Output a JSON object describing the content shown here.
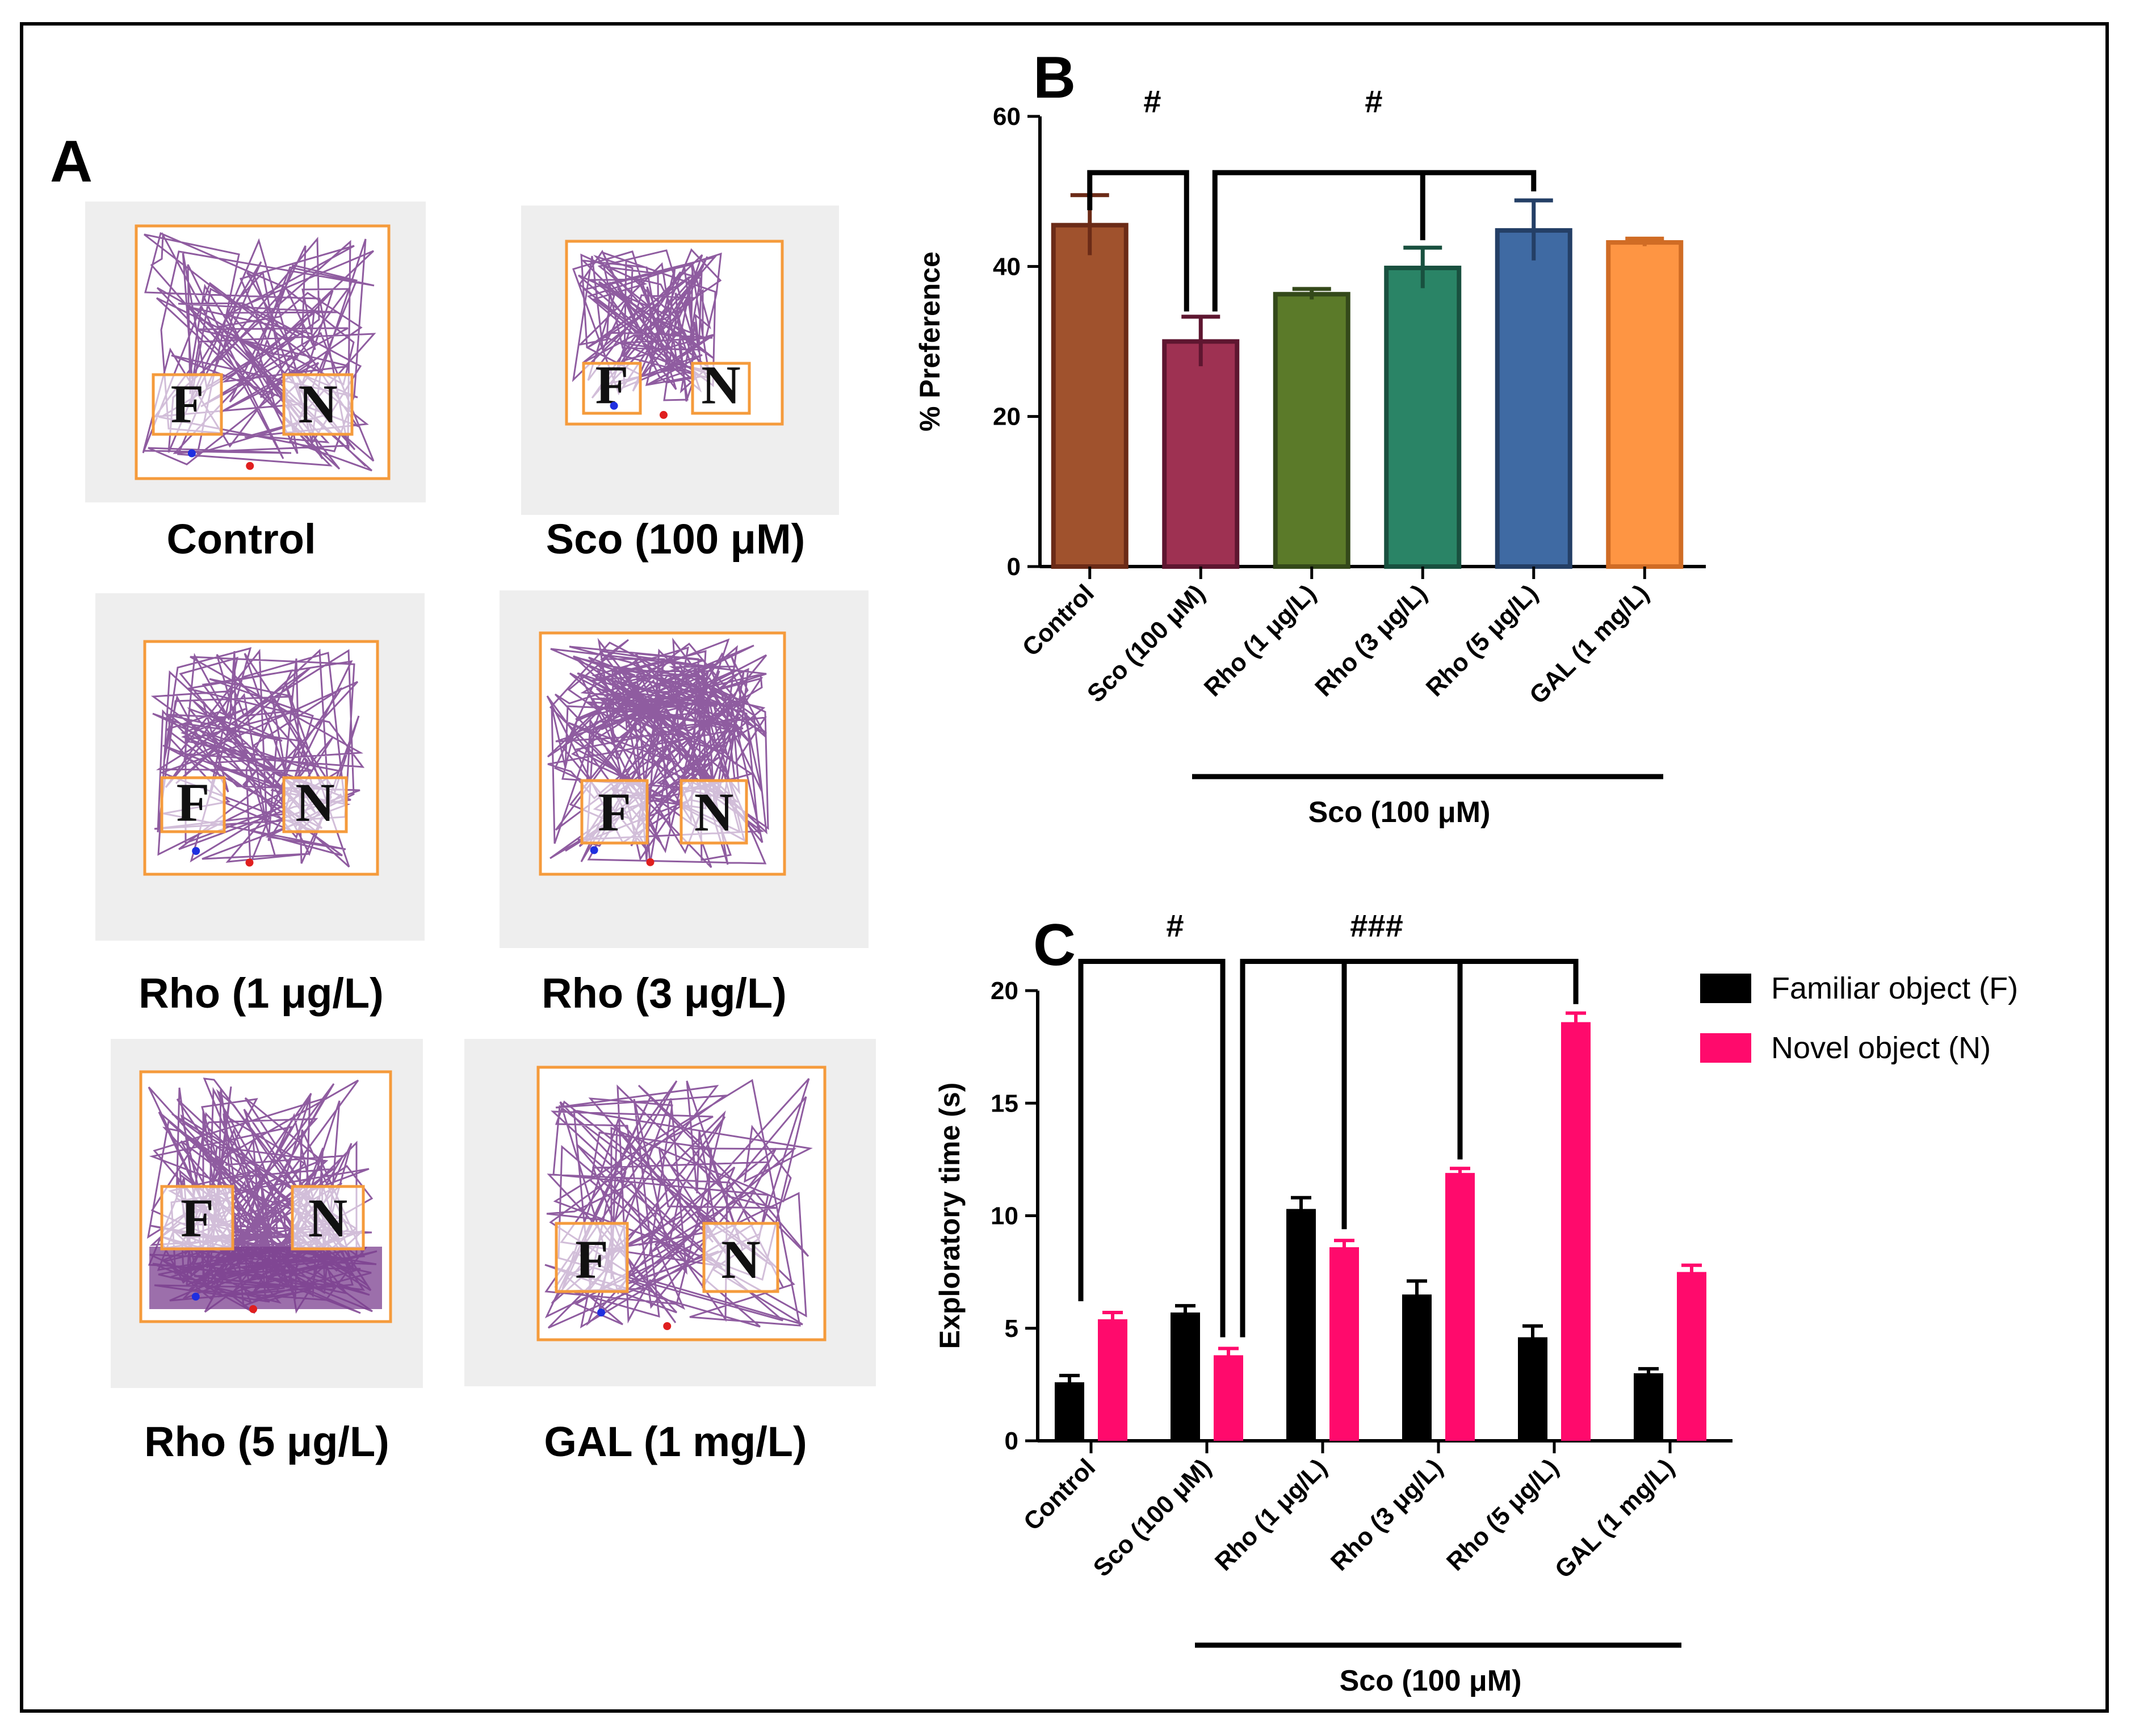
{
  "panels": {
    "a": {
      "letter": "A",
      "thumbs": [
        {
          "label": "Control",
          "F": "F",
          "N": "N"
        },
        {
          "label": "Sco (100 μM)",
          "F": "F",
          "N": "N"
        },
        {
          "label": "Rho (1 μg/L)",
          "F": "F",
          "N": "N"
        },
        {
          "label": "Rho (3 μg/L)",
          "F": "F",
          "N": "N"
        },
        {
          "label": "Rho (5 μg/L)",
          "F": "F",
          "N": "N"
        },
        {
          "label": "GAL (1 mg/L)",
          "F": "F",
          "N": "N"
        }
      ]
    },
    "b": {
      "letter": "B",
      "group_label": "Sco (100 μM)",
      "sig1": "#",
      "sig2": "#"
    },
    "c": {
      "letter": "C",
      "group_label": "Sco (100 μM)",
      "sig1": "#",
      "sig2": "###"
    }
  },
  "colors": {
    "track": "#7b3f8f",
    "arena": "#f59b3c",
    "thumb_bg": "#eeeeee",
    "familiar": "#000000",
    "novel": "#ff0a6c"
  },
  "chart_data": [
    {
      "type": "bar",
      "panel": "B",
      "ylabel": "% Preference",
      "ylim": [
        0,
        60
      ],
      "yticks": [
        0,
        20,
        40,
        60
      ],
      "categories": [
        "Control",
        "Sco (100 μM)",
        "Rho (1 μg/L)",
        "Rho (3 μg/L)",
        "Rho (5 μg/L)",
        "GAL (1 mg/L)"
      ],
      "values": [
        45.5,
        30,
        36.3,
        39.8,
        44.8,
        43.2
      ],
      "errors": [
        4,
        3.3,
        0.7,
        2.7,
        4,
        0.5
      ],
      "fill_colors": [
        "#a0522d",
        "#9e3152",
        "#5b7a29",
        "#2a8466",
        "#3f6aa3",
        "#fe9543"
      ],
      "edge_colors": [
        "#6b2b17",
        "#5e1630",
        "#34491a",
        "#19503f",
        "#243f66",
        "#d06c25"
      ]
    },
    {
      "type": "bar",
      "panel": "C",
      "ylabel": "Exploratory time (s)",
      "ylim": [
        0,
        20
      ],
      "yticks": [
        0,
        5,
        10,
        15,
        20
      ],
      "categories": [
        "Control",
        "Sco (100 μM)",
        "Rho (1 μg/L)",
        "Rho (3 μg/L)",
        "Rho (5 μg/L)",
        "GAL (1 mg/L)"
      ],
      "legend_position": "top-right",
      "series": [
        {
          "name": "Familiar object (F)",
          "color": "#000000",
          "values": [
            2.6,
            5.7,
            10.3,
            6.5,
            4.6,
            3.0
          ],
          "errors": [
            0.3,
            0.3,
            0.5,
            0.6,
            0.5,
            0.2
          ]
        },
        {
          "name": "Novel object (N)",
          "color": "#ff0a6c",
          "values": [
            5.4,
            3.8,
            8.6,
            11.9,
            18.6,
            7.5
          ],
          "errors": [
            0.3,
            0.3,
            0.3,
            0.2,
            0.4,
            0.3
          ]
        }
      ]
    }
  ]
}
